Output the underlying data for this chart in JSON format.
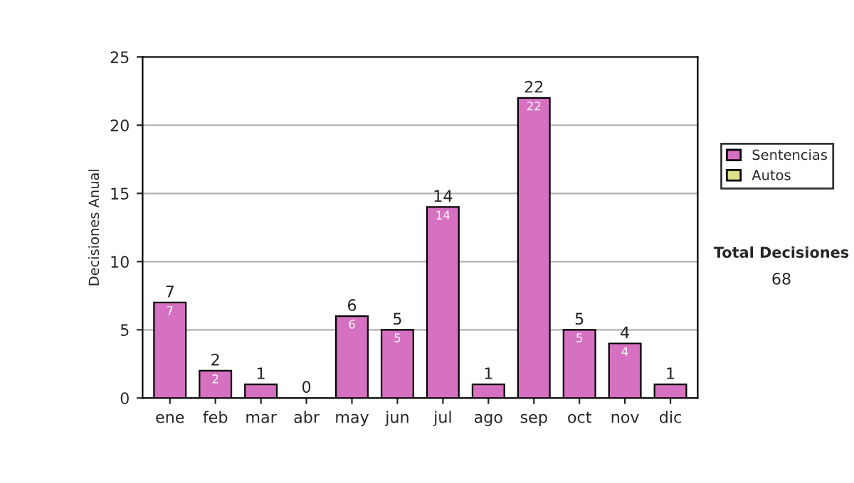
{
  "chart_data": {
    "type": "bar",
    "ylabel": "Decisiones Anual",
    "categories": [
      "ene",
      "feb",
      "mar",
      "abr",
      "may",
      "jun",
      "jul",
      "ago",
      "sep",
      "oct",
      "nov",
      "dic"
    ],
    "stacked": true,
    "series": [
      {
        "name": "Sentencias",
        "color": "#d670c0",
        "values": [
          7,
          2,
          1,
          0,
          6,
          5,
          14,
          1,
          22,
          5,
          4,
          1
        ],
        "value_labels": [
          "7",
          "2",
          null,
          null,
          "6",
          "5",
          "14",
          null,
          "22",
          "5",
          "4",
          null
        ]
      },
      {
        "name": "Autos",
        "color": "#dde08a",
        "values": [
          0,
          0,
          0,
          0,
          0,
          0,
          0,
          0,
          0,
          0,
          0,
          0
        ]
      }
    ],
    "totals": [
      "7",
      "2",
      "1",
      "0",
      "6",
      "5",
      "14",
      "1",
      "22",
      "5",
      "4",
      "1"
    ],
    "ylim": [
      0,
      25
    ],
    "yticks": [
      0,
      5,
      10,
      15,
      20,
      25
    ],
    "grid": "y",
    "legend": "right",
    "annotations": [
      "Total Decisiones",
      "68"
    ]
  }
}
